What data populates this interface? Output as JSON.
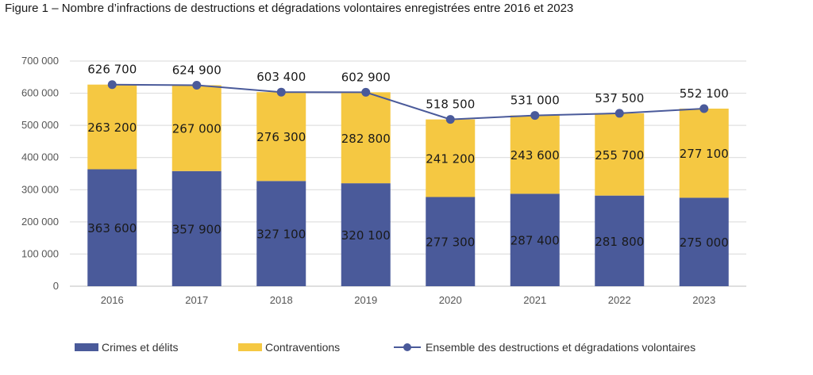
{
  "figure": {
    "title": "Figure 1 – Nombre d’infractions de destructions et dégradations volontaires enregistrées entre 2016 et 2023"
  },
  "chart_data": {
    "type": "bar",
    "stacked": true,
    "title": "Figure 1 – Nombre d’infractions de destructions et dégradations volontaires enregistrées entre 2016 et 2023",
    "categories": [
      "2016",
      "2017",
      "2018",
      "2019",
      "2020",
      "2021",
      "2022",
      "2023"
    ],
    "ylim": [
      0,
      700000
    ],
    "yticks": [
      0,
      100000,
      200000,
      300000,
      400000,
      500000,
      600000,
      700000
    ],
    "ytick_labels": [
      "0",
      "100 000",
      "200 000",
      "300 000",
      "400 000",
      "500 000",
      "600 000",
      "700 000"
    ],
    "grid": true,
    "legend_position": "bottom",
    "series": [
      {
        "name": "Crimes et délits",
        "kind": "bar",
        "color": "#4a5a9a",
        "values": [
          363600,
          357900,
          327100,
          320100,
          277300,
          287400,
          281800,
          275000
        ],
        "labels": [
          "363 600",
          "357 900",
          "327 100",
          "320 100",
          "277 300",
          "287 400",
          "281 800",
          "275 000"
        ]
      },
      {
        "name": "Contraventions",
        "kind": "bar",
        "color": "#f5c842",
        "values": [
          263200,
          267000,
          276300,
          282800,
          241200,
          243600,
          255700,
          277100
        ],
        "labels": [
          "263 200",
          "267 000",
          "276 300",
          "282 800",
          "241 200",
          "243 600",
          "255 700",
          "277 100"
        ]
      },
      {
        "name": "Ensemble des destructions et dégradations volontaires",
        "kind": "line",
        "color": "#4a5a9a",
        "values": [
          626700,
          624900,
          603400,
          602900,
          518500,
          531000,
          537500,
          552100
        ],
        "labels": [
          "626 700",
          "624 900",
          "603 400",
          "602 900",
          "518 500",
          "531 000",
          "537 500",
          "552 100"
        ]
      }
    ]
  }
}
